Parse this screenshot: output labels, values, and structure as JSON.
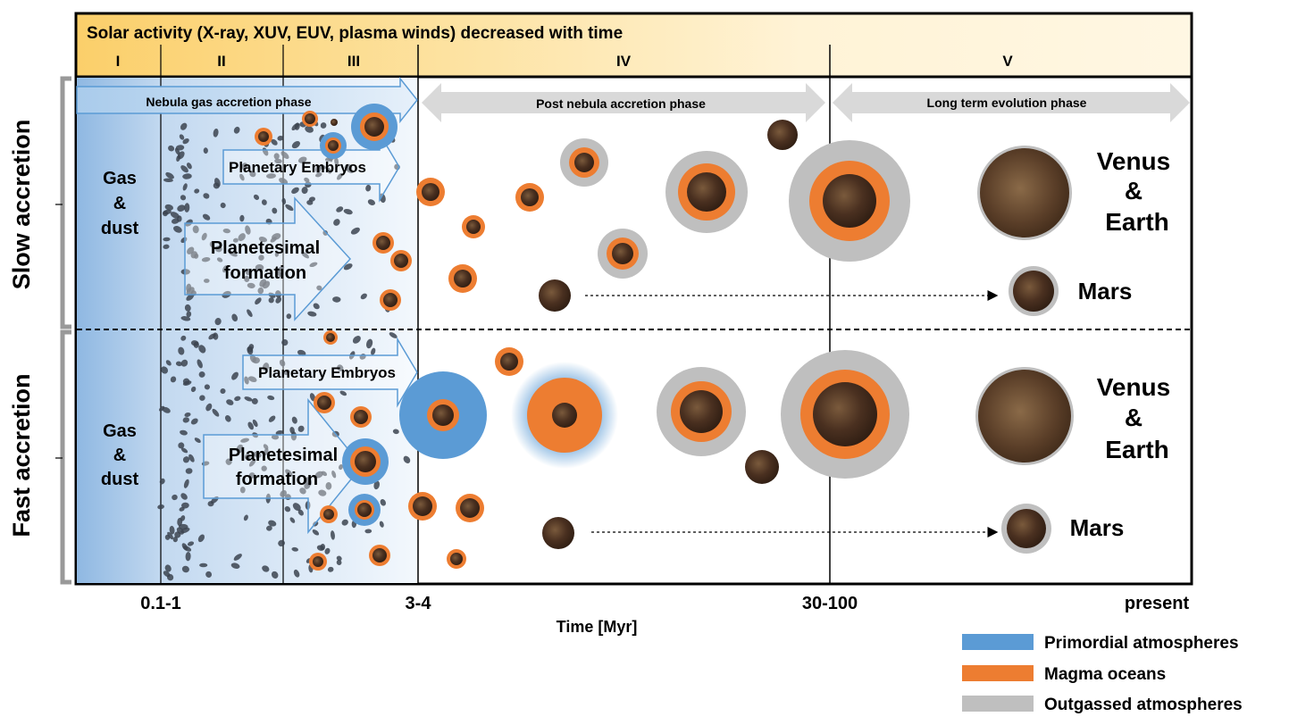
{
  "banner": {
    "title": "Solar activity (X-ray, XUV, EUV, plasma winds) decreased with time",
    "stages": [
      "I",
      "II",
      "III",
      "IV",
      "V"
    ]
  },
  "phases": {
    "nebula": "Nebula gas accretion phase",
    "post": "Post nebula accretion phase",
    "long": "Long term evolution phase"
  },
  "rows": {
    "slow": "Slow accretion",
    "fast": "Fast accretion"
  },
  "labels": {
    "gas_dust_1": "Gas",
    "gas_dust_2": "&",
    "gas_dust_3": "dust",
    "embryos": "Planetary Embryos",
    "planetesimal_1": "Planetesimal",
    "planetesimal_2": "formation",
    "venus": "Venus",
    "amp": "&",
    "earth": "Earth",
    "mars": "Mars"
  },
  "time_axis": {
    "ticks": [
      "0.1-1",
      "3-4",
      "30-100",
      "present"
    ],
    "title": "Time [Myr]"
  },
  "legend": [
    {
      "label": "Primordial atmospheres",
      "color": "#5b9bd5"
    },
    {
      "label": "Magma oceans",
      "color": "#ed7d31"
    },
    {
      "label": "Outgassed atmospheres",
      "color": "#bfbfbf"
    }
  ],
  "colors": {
    "primordial": "#5b9bd5",
    "magma": "#ed7d31",
    "outgassed": "#bfbfbf",
    "rock": "#4a3020",
    "banner": "#fce4a8",
    "nebula": "#a9c8e8"
  }
}
